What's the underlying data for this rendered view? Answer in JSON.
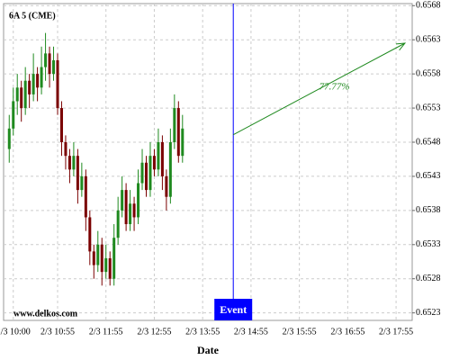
{
  "chart_data": {
    "type": "candlestick",
    "title": "6A 5 (CME)",
    "xlabel": "Date",
    "watermark": "www.delkos.com",
    "x": [
      "2/3 09:55",
      "2/3 10:00",
      "2/3 10:05",
      "2/3 10:10",
      "2/3 10:15",
      "2/3 10:20",
      "2/3 10:25",
      "2/3 10:30",
      "2/3 10:35",
      "2/3 10:40",
      "2/3 10:45",
      "2/3 10:50",
      "2/3 10:55",
      "2/3 11:00",
      "2/3 11:05",
      "2/3 11:10",
      "2/3 11:15",
      "2/3 11:20",
      "2/3 11:25",
      "2/3 11:30",
      "2/3 11:35",
      "2/3 11:40",
      "2/3 11:45",
      "2/3 11:50",
      "2/3 11:55",
      "2/3 12:00",
      "2/3 12:05",
      "2/3 12:10",
      "2/3 12:15",
      "2/3 12:20",
      "2/3 12:25",
      "2/3 12:30",
      "2/3 12:35",
      "2/3 12:40",
      "2/3 12:45",
      "2/3 12:50",
      "2/3 12:55",
      "2/3 13:00",
      "2/3 13:05",
      "2/3 13:10",
      "2/3 13:15",
      "2/3 13:20",
      "2/3 13:25",
      "2/3 13:30"
    ],
    "open": [
      0.6547,
      0.655,
      0.6554,
      0.6556,
      0.6553,
      0.6557,
      0.6555,
      0.6558,
      0.6556,
      0.6559,
      0.6561,
      0.6558,
      0.656,
      0.6553,
      0.6548,
      0.6546,
      0.6544,
      0.6546,
      0.6541,
      0.6543,
      0.6537,
      0.6532,
      0.653,
      0.6533,
      0.6529,
      0.6531,
      0.6528,
      0.6534,
      0.6538,
      0.6541,
      0.6536,
      0.6539,
      0.6537,
      0.6542,
      0.6545,
      0.6541,
      0.6546,
      0.6544,
      0.6548,
      0.6543,
      0.654,
      0.6548,
      0.6553,
      0.6546
    ],
    "high": [
      0.6552,
      0.6556,
      0.6558,
      0.6557,
      0.6559,
      0.6558,
      0.6561,
      0.6559,
      0.6562,
      0.6564,
      0.6562,
      0.6562,
      0.6561,
      0.6554,
      0.6549,
      0.6547,
      0.6548,
      0.6547,
      0.6545,
      0.6544,
      0.6538,
      0.6533,
      0.6535,
      0.6534,
      0.6533,
      0.6532,
      0.6536,
      0.654,
      0.6543,
      0.6542,
      0.6541,
      0.654,
      0.6544,
      0.6547,
      0.6546,
      0.6548,
      0.6547,
      0.655,
      0.6549,
      0.6544,
      0.655,
      0.6555,
      0.6554,
      0.6552
    ],
    "low": [
      0.6545,
      0.6549,
      0.6552,
      0.6551,
      0.6552,
      0.6553,
      0.6554,
      0.6554,
      0.6555,
      0.6557,
      0.6556,
      0.6557,
      0.6552,
      0.6546,
      0.6544,
      0.6542,
      0.6543,
      0.6539,
      0.654,
      0.6535,
      0.653,
      0.6528,
      0.6529,
      0.6527,
      0.6528,
      0.6527,
      0.6527,
      0.6533,
      0.6537,
      0.6535,
      0.6535,
      0.6535,
      0.6536,
      0.6541,
      0.654,
      0.654,
      0.6543,
      0.6543,
      0.6541,
      0.6538,
      0.6539,
      0.6547,
      0.6545,
      0.6545
    ],
    "close": [
      0.655,
      0.6554,
      0.6556,
      0.6553,
      0.6557,
      0.6555,
      0.6558,
      0.6556,
      0.6559,
      0.6561,
      0.6558,
      0.656,
      0.6553,
      0.6548,
      0.6546,
      0.6544,
      0.6546,
      0.6541,
      0.6543,
      0.6537,
      0.6532,
      0.653,
      0.6533,
      0.6529,
      0.6531,
      0.6528,
      0.6534,
      0.6538,
      0.6541,
      0.6536,
      0.6539,
      0.6537,
      0.6542,
      0.6545,
      0.6541,
      0.6546,
      0.6544,
      0.6548,
      0.6543,
      0.654,
      0.6548,
      0.6553,
      0.6546,
      0.655
    ],
    "up_color": "#1f8a1f",
    "down_color": "#7a0000",
    "xlim": [
      "2/3 09:48",
      "2/3 18:15"
    ],
    "xticks": [
      "2/3 10:00",
      "2/3 10:55",
      "2/3 11:55",
      "2/3 12:55",
      "2/3 13:55",
      "2/3 14:55",
      "2/3 15:55",
      "2/3 16:55",
      "2/3 17:55"
    ],
    "ylim": [
      0.65219,
      0.65683
    ],
    "yticks": [
      0.6568,
      0.6563,
      0.6558,
      0.6553,
      0.6548,
      0.6543,
      0.6538,
      0.6533,
      0.6528,
      0.6523
    ],
    "grid": true,
    "event": {
      "label": "Event",
      "x": "2/3 14:33",
      "color": "#0000ff"
    },
    "projection": {
      "label": "77.77%",
      "x": [
        "2/3 14:33",
        "2/3 18:06"
      ],
      "y": [
        0.65491,
        0.65625
      ],
      "color": "#1f8a1f"
    }
  }
}
